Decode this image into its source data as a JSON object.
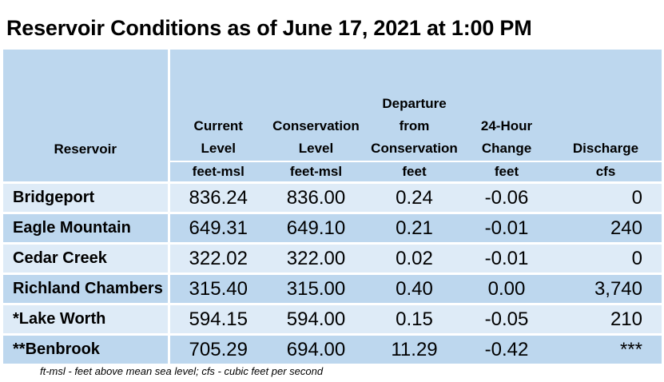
{
  "title": "Reservoir Conditions as of June 17, 2021 at 1:00 PM",
  "headers": {
    "reservoir": "Reservoir",
    "current_level": [
      "Current",
      "Level"
    ],
    "conservation_level": [
      "Conservation",
      "Level"
    ],
    "departure": [
      "Departure",
      "from",
      "Conservation"
    ],
    "change": [
      "24-Hour",
      "Change"
    ],
    "discharge": [
      "Discharge"
    ]
  },
  "units": {
    "current_level": "feet-msl",
    "conservation_level": "feet-msl",
    "departure": "feet",
    "change": "feet",
    "discharge": "cfs"
  },
  "rows": [
    {
      "name": "Bridgeport",
      "current": "836.24",
      "conservation": "836.00",
      "departure": "0.24",
      "change": "-0.06",
      "discharge": "0"
    },
    {
      "name": "Eagle Mountain",
      "current": "649.31",
      "conservation": "649.10",
      "departure": "0.21",
      "change": "-0.01",
      "discharge": "240"
    },
    {
      "name": "Cedar Creek",
      "current": "322.02",
      "conservation": "322.00",
      "departure": "0.02",
      "change": "-0.01",
      "discharge": "0"
    },
    {
      "name": "Richland Chambers",
      "current": "315.40",
      "conservation": "315.00",
      "departure": "0.40",
      "change": "0.00",
      "discharge": "3,740"
    },
    {
      "name": "*Lake Worth",
      "current": "594.15",
      "conservation": "594.00",
      "departure": "0.15",
      "change": "-0.05",
      "discharge": "210"
    },
    {
      "name": "**Benbrook",
      "current": "705.29",
      "conservation": "694.00",
      "departure": "11.29",
      "change": "-0.42",
      "discharge": "***"
    }
  ],
  "footnote": "ft-msl - feet above mean sea level; cfs - cubic feet per second",
  "colors": {
    "header_bg": "#bdd7ee",
    "row_light": "#deebf7",
    "row_dark": "#bdd7ee"
  }
}
